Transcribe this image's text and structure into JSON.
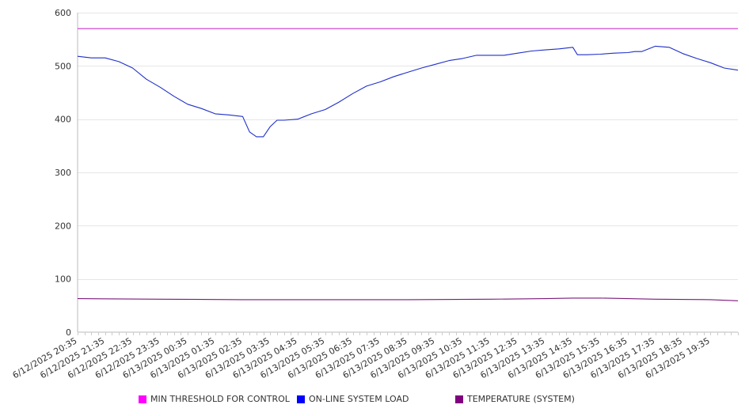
{
  "chart_data": {
    "type": "line",
    "title": "",
    "xlabel": "",
    "ylabel": "",
    "ylim": [
      0,
      600
    ],
    "yticks": [
      0,
      100,
      200,
      300,
      400,
      500,
      600
    ],
    "grid": "horizontal",
    "legend_position": "bottom",
    "x_tick_labels": [
      "6/12/2025 20:35",
      "6/12/2025 21:35",
      "6/12/2025 22:35",
      "6/12/2025 23:35",
      "6/13/2025 00:35",
      "6/13/2025 01:35",
      "6/13/2025 02:35",
      "6/13/2025 03:35",
      "6/13/2025 04:35",
      "6/13/2025 05:35",
      "6/13/2025 06:35",
      "6/13/2025 07:35",
      "6/13/2025 08:35",
      "6/13/2025 09:35",
      "6/13/2025 10:35",
      "6/13/2025 11:35",
      "6/13/2025 12:35",
      "6/13/2025 13:35",
      "6/13/2025 14:35",
      "6/13/2025 15:35",
      "6/13/2025 16:35",
      "6/13/2025 17:35",
      "6/13/2025 18:35",
      "6/13/2025 19:35"
    ],
    "x_range": [
      "6/12/2025 20:35",
      "6/13/2025 20:35"
    ],
    "series": [
      {
        "name": "MIN THRESHOLD FOR CONTROL",
        "color": "#ff00ff",
        "line_color": "#cc33cc",
        "x": [
          "6/12/2025 20:35",
          "6/13/2025 20:35"
        ],
        "values": [
          570,
          570
        ]
      },
      {
        "name": "ON-LINE SYSTEM LOAD",
        "color": "#0000ff",
        "line_color": "#1f2fc8",
        "x": [
          "6/12/2025 20:35",
          "6/12/2025 21:05",
          "6/12/2025 21:35",
          "6/12/2025 22:05",
          "6/12/2025 22:35",
          "6/12/2025 23:05",
          "6/12/2025 23:35",
          "6/13/2025 00:05",
          "6/13/2025 00:35",
          "6/13/2025 01:05",
          "6/13/2025 01:35",
          "6/13/2025 02:05",
          "6/13/2025 02:35",
          "6/13/2025 02:50",
          "6/13/2025 03:05",
          "6/13/2025 03:20",
          "6/13/2025 03:35",
          "6/13/2025 03:50",
          "6/13/2025 04:05",
          "6/13/2025 04:35",
          "6/13/2025 05:05",
          "6/13/2025 05:35",
          "6/13/2025 06:05",
          "6/13/2025 06:35",
          "6/13/2025 07:05",
          "6/13/2025 07:35",
          "6/13/2025 08:05",
          "6/13/2025 08:35",
          "6/13/2025 09:05",
          "6/13/2025 09:35",
          "6/13/2025 10:05",
          "6/13/2025 10:35",
          "6/13/2025 11:05",
          "6/13/2025 11:35",
          "6/13/2025 12:05",
          "6/13/2025 12:35",
          "6/13/2025 13:05",
          "6/13/2025 13:35",
          "6/13/2025 14:05",
          "6/13/2025 14:35",
          "6/13/2025 14:45",
          "6/13/2025 15:05",
          "6/13/2025 15:35",
          "6/13/2025 16:05",
          "6/13/2025 16:35",
          "6/13/2025 16:50",
          "6/13/2025 17:05",
          "6/13/2025 17:35",
          "6/13/2025 18:05",
          "6/13/2025 18:35",
          "6/13/2025 19:05",
          "6/13/2025 19:35",
          "6/13/2025 20:05",
          "6/13/2025 20:35"
        ],
        "values": [
          518,
          515,
          515,
          508,
          496,
          475,
          460,
          443,
          428,
          420,
          410,
          408,
          405,
          376,
          367,
          367,
          386,
          398,
          398,
          400,
          410,
          418,
          432,
          448,
          462,
          470,
          480,
          488,
          496,
          503,
          510,
          514,
          520,
          520,
          520,
          524,
          528,
          530,
          532,
          535,
          521,
          521,
          522,
          524,
          525,
          527,
          527,
          537,
          535,
          523,
          514,
          506,
          496,
          492
        ]
      },
      {
        "name": "TEMPERATURE (SYSTEM)",
        "color": "#800080",
        "line_color": "#7a1a7a",
        "x": [
          "6/12/2025 20:35",
          "6/12/2025 23:35",
          "6/13/2025 02:35",
          "6/13/2025 05:35",
          "6/13/2025 08:35",
          "6/13/2025 11:35",
          "6/13/2025 13:35",
          "6/13/2025 14:35",
          "6/13/2025 15:35",
          "6/13/2025 16:35",
          "6/13/2025 17:35",
          "6/13/2025 19:35",
          "6/13/2025 20:35"
        ],
        "values": [
          63,
          62,
          61,
          61,
          61,
          62,
          63,
          64,
          64,
          63,
          62,
          61,
          59
        ]
      }
    ]
  }
}
